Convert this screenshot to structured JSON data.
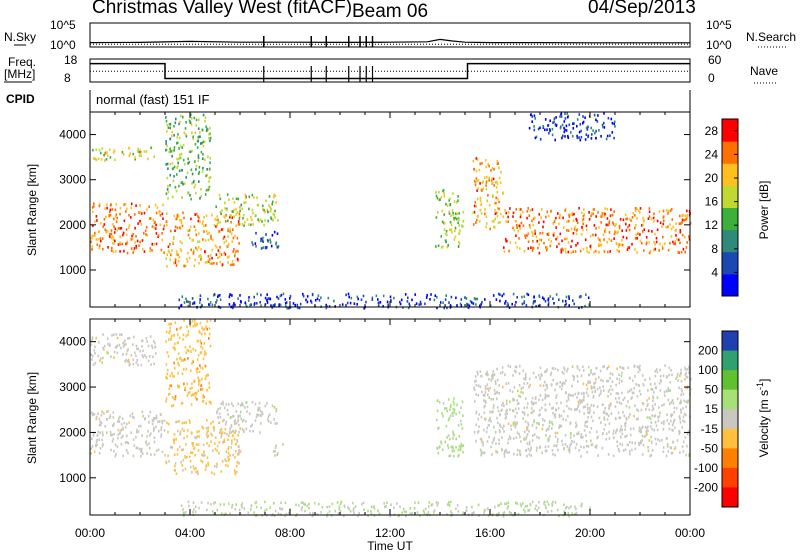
{
  "header": {
    "station": "Christmas Valley West (fitACF)",
    "beam": "Beam 06",
    "date": "04/Sep/2013"
  },
  "strips": {
    "nsky_label": "N.Sky",
    "nsearch_label": "N.Search",
    "freq_label_line1": "Freq.",
    "freq_label_line2": "[MHz]",
    "nave_label": "Nave",
    "cpid_label": "CPID",
    "noise_ticks": [
      "10^5",
      "10^0"
    ],
    "freq_ticks": [
      "18",
      "8"
    ],
    "nave_ticks": [
      "60",
      "0"
    ],
    "program": "normal (fast) 151 IF"
  },
  "chart_data": [
    {
      "panel": "noise",
      "type": "line",
      "x_range_hours": [
        0,
        24
      ],
      "series": [
        {
          "name": "N.Sky",
          "x": [
            0,
            2,
            4,
            6,
            8,
            10,
            12,
            13.5,
            14,
            14.5,
            15,
            16,
            18,
            20,
            22,
            24
          ],
          "y_log10": [
            0.6,
            0.65,
            0.9,
            0.7,
            0.7,
            0.65,
            0.7,
            0.8,
            1.4,
            1.0,
            0.7,
            0.6,
            0.6,
            0.55,
            0.55,
            0.55
          ]
        },
        {
          "name": "N.Search",
          "x": [
            0,
            24
          ],
          "y_log10": [
            0.2,
            0.2
          ]
        }
      ],
      "dropouts_hours": [
        6.95,
        8.85,
        9.45,
        10.35,
        10.8,
        11.05,
        11.3
      ]
    },
    {
      "panel": "frequency_nave",
      "type": "line",
      "x_range_hours": [
        0,
        24
      ],
      "series": [
        {
          "name": "Freq",
          "x": [
            0,
            3.0,
            3.0,
            15.1,
            15.1,
            24
          ],
          "y": [
            16,
            16,
            9.5,
            9.5,
            16,
            16
          ],
          "ylim": [
            8,
            18
          ]
        },
        {
          "name": "Nave",
          "x": [
            0,
            24
          ],
          "y": [
            28,
            28
          ],
          "ylim": [
            0,
            60
          ]
        }
      ]
    },
    {
      "panel": "power",
      "type": "heatmap",
      "xlabel": "",
      "ylabel": "Slant Range [km]",
      "xlim_hours": [
        0,
        24
      ],
      "ylim_km": [
        180,
        4500
      ],
      "y_ticks": [
        1000,
        2000,
        3000,
        4000
      ],
      "colorbar": {
        "label": "Power [dB]",
        "ticks": [
          4,
          8,
          12,
          16,
          20,
          24,
          28
        ],
        "range": [
          0,
          30
        ],
        "colors": [
          "#0000ff",
          "#1c48b4",
          "#2f8a7a",
          "#3cb03c",
          "#c0d830",
          "#ffc020",
          "#ff7000",
          "#ff0000"
        ]
      },
      "regions": [
        {
          "t0": 0.0,
          "t1": 3.0,
          "r0": 1400,
          "r1": 2500,
          "power": 24
        },
        {
          "t0": 0.0,
          "t1": 2.6,
          "r0": 3450,
          "r1": 3750,
          "power": 18
        },
        {
          "t0": 3.0,
          "t1": 6.0,
          "r0": 1100,
          "r1": 2300,
          "power": 22
        },
        {
          "t0": 3.0,
          "t1": 4.8,
          "r0": 2600,
          "r1": 4500,
          "power": 14
        },
        {
          "t0": 5.0,
          "t1": 7.5,
          "r0": 2000,
          "r1": 2700,
          "power": 16
        },
        {
          "t0": 6.3,
          "t1": 7.6,
          "r0": 1500,
          "r1": 1900,
          "power": 6
        },
        {
          "t0": 13.8,
          "t1": 14.9,
          "r0": 1500,
          "r1": 2800,
          "power": 16
        },
        {
          "t0": 15.3,
          "t1": 16.5,
          "r0": 1900,
          "r1": 3500,
          "power": 22
        },
        {
          "t0": 16.5,
          "t1": 24.0,
          "r0": 1400,
          "r1": 2400,
          "power": 24
        },
        {
          "t0": 17.5,
          "t1": 21.0,
          "r0": 3900,
          "r1": 4500,
          "power": 5
        },
        {
          "t0": 3.5,
          "t1": 20.0,
          "r0": 180,
          "r1": 500,
          "power": 5
        }
      ]
    },
    {
      "panel": "velocity",
      "type": "heatmap",
      "xlabel": "Time UT",
      "ylabel": "Slant Range [km]",
      "xlim_hours": [
        0,
        24
      ],
      "ylim_km": [
        180,
        4500
      ],
      "x_ticks": [
        "00:00",
        "04:00",
        "08:00",
        "12:00",
        "16:00",
        "20:00",
        "00:00"
      ],
      "y_ticks": [
        1000,
        2000,
        3000,
        4000
      ],
      "colorbar": {
        "label": "Velocity [m s^-1]",
        "ticks": [
          200,
          100,
          50,
          15,
          -15,
          -50,
          -100,
          -200
        ],
        "range": [
          -250,
          250
        ],
        "colors": [
          "#2040b0",
          "#30a070",
          "#60c030",
          "#a8e078",
          "#c8c8c0",
          "#ffc040",
          "#ff8000",
          "#ff4000",
          "#ff0000"
        ]
      },
      "regions": [
        {
          "t0": 0.0,
          "t1": 3.0,
          "r0": 1500,
          "r1": 2500,
          "velocity": 0
        },
        {
          "t0": 0.0,
          "t1": 2.6,
          "r0": 3500,
          "r1": 4200,
          "velocity": 0
        },
        {
          "t0": 3.0,
          "t1": 6.0,
          "r0": 1100,
          "r1": 2300,
          "velocity": -40
        },
        {
          "t0": 3.0,
          "t1": 4.8,
          "r0": 2600,
          "r1": 4500,
          "velocity": -60
        },
        {
          "t0": 5.0,
          "t1": 7.5,
          "r0": 2000,
          "r1": 2700,
          "velocity": 0
        },
        {
          "t0": 7.3,
          "t1": 7.8,
          "r0": 1500,
          "r1": 1800,
          "velocity": 30
        },
        {
          "t0": 13.8,
          "t1": 14.9,
          "r0": 1500,
          "r1": 2800,
          "velocity": 40
        },
        {
          "t0": 15.3,
          "t1": 24.0,
          "r0": 1500,
          "r1": 3500,
          "velocity": 0
        },
        {
          "t0": 3.5,
          "t1": 20.0,
          "r0": 180,
          "r1": 500,
          "velocity": 30
        }
      ]
    }
  ]
}
